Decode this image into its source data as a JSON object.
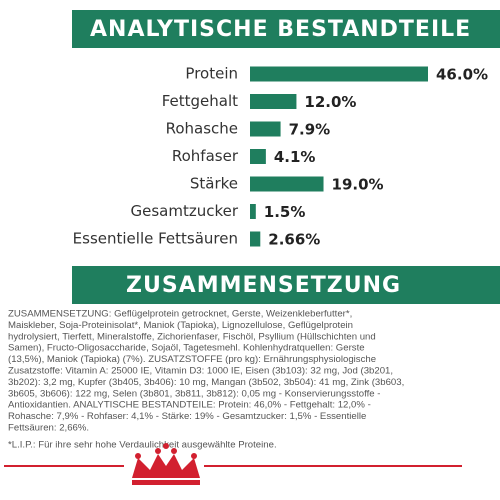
{
  "chart_data": {
    "type": "bar",
    "orientation": "horizontal",
    "title": "ANALYTISCHE BESTANDTEILE",
    "categories": [
      "Protein",
      "Fettgehalt",
      "Rohasche",
      "Rohfaser",
      "Stärke",
      "Gesamtzucker",
      "Essentielle Fettsäuren"
    ],
    "values": [
      46.0,
      12.0,
      7.9,
      4.1,
      19.0,
      1.5,
      2.66
    ],
    "value_labels": [
      "46.0%",
      "12.0%",
      "7.9%",
      "4.1%",
      "19.0%",
      "1.5%",
      "2.66%"
    ],
    "color": "#1f7e5e"
  },
  "composition": {
    "title": "ZUSAMMENSETZUNG",
    "lines": [
      "ZUSAMMENSETZUNG: Geflügelprotein getrocknet, Gerste, Weizenkleberfutter*,",
      "Maiskleber, Soja-Proteinisolat*, Maniok (Tapioka), Lignozellulose, Geflügelprotein",
      "hydrolysiert, Tierfett, Mineralstoffe, Zichorienfaser, Fischöl, Psyllium (Hüllschichten und",
      "Samen), Fructo-Oligosaccharide, Sojaöl, Tagetesmehl. Kohlenhydratquellen: Gerste",
      "(13,5%), Maniok (Tapioka) (7%). ZUSATZSTOFFE (pro kg): Ernährungsphysiologische",
      "Zusatzstoffe: Vitamin A: 25000 IE, Vitamin D3: 1000 IE, Eisen (3b103): 32 mg, Jod (3b201,",
      "3b202): 3,2 mg, Kupfer (3b405, 3b406): 10 mg, Mangan (3b502, 3b504): 41 mg, Zink (3b603,",
      "3b605, 3b606): 122 mg, Selen (3b801, 3b811, 3b812): 0,05 mg - Konservierungsstoffe -",
      "Antioxidantien. ANALYTISCHE BESTANDTEILE: Protein: 46,0% - Fettgehalt: 12,0% -",
      "Rohasche: 7,9% - Rohfaser: 4,1% - Stärke: 19% - Gesamtzucker: 1,5% - Essentielle",
      "Fettsäuren: 2,66%."
    ],
    "footnote": "*L.I.P.: Für ihre sehr hohe Verdaulichkeit ausgewählte Proteine."
  }
}
